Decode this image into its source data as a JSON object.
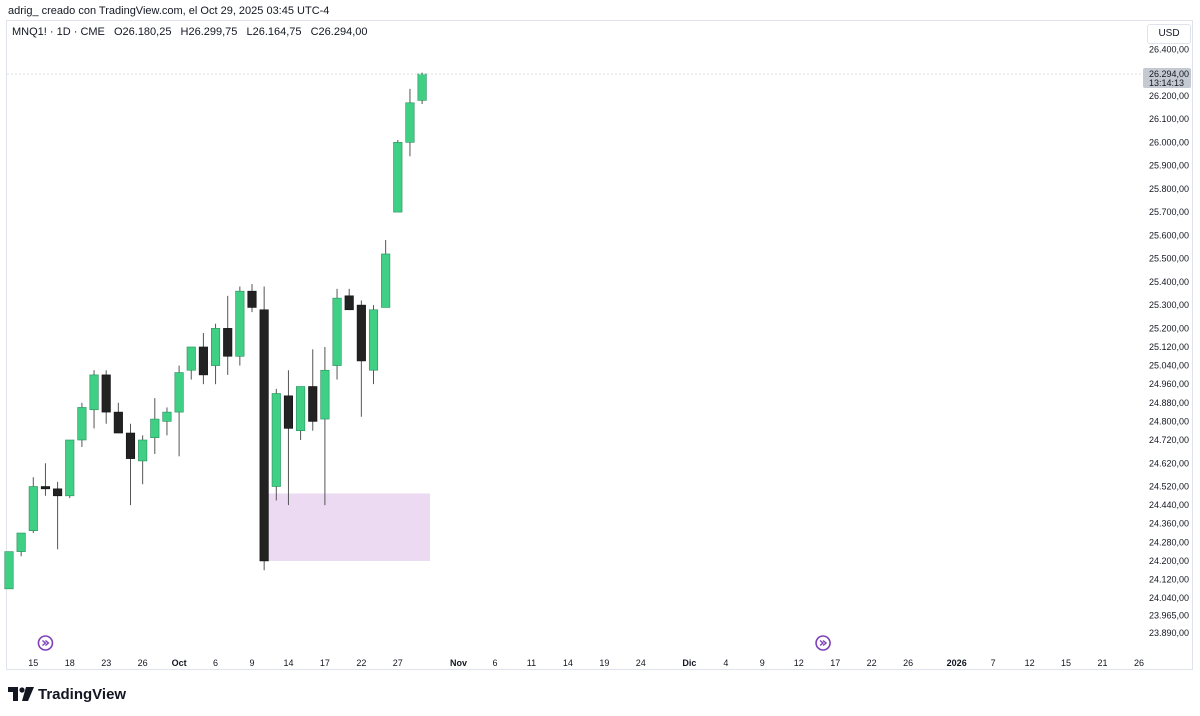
{
  "header": {
    "text": "adrig_ creado con TradingView.com, el Oct 29, 2025 03:45 UTC-4"
  },
  "legend": {
    "symbol": "MNQ1! · 1D · CME",
    "open": "O26.180,25",
    "high": "H26.299,75",
    "low": "L26.164,75",
    "close": "C26.294,00"
  },
  "currency_button": "USD",
  "last_price": {
    "value": "26.294,00",
    "countdown": "13:14:13"
  },
  "brand": "TradingView",
  "colors": {
    "up": "#3fcf85",
    "down": "#222222",
    "zone": "#e8d3ee",
    "event_icon": "#7e3fb9",
    "price_label_bg": "#c5c9d1"
  },
  "chart_data": {
    "type": "candlestick",
    "ylim": [
      23860,
      26440
    ],
    "y_ticks": [
      {
        "label": "26.400,00",
        "value": 26400
      },
      {
        "label": "26.200,00",
        "value": 26200
      },
      {
        "label": "26.100,00",
        "value": 26100
      },
      {
        "label": "26.000,00",
        "value": 26000
      },
      {
        "label": "25.900,00",
        "value": 25900
      },
      {
        "label": "25.800,00",
        "value": 25800
      },
      {
        "label": "25.700,00",
        "value": 25700
      },
      {
        "label": "25.600,00",
        "value": 25600
      },
      {
        "label": "25.500,00",
        "value": 25500
      },
      {
        "label": "25.400,00",
        "value": 25400
      },
      {
        "label": "25.300,00",
        "value": 25300
      },
      {
        "label": "25.200,00",
        "value": 25200
      },
      {
        "label": "25.120,00",
        "value": 25120
      },
      {
        "label": "25.040,00",
        "value": 25040
      },
      {
        "label": "24.960,00",
        "value": 24960
      },
      {
        "label": "24.880,00",
        "value": 24880
      },
      {
        "label": "24.800,00",
        "value": 24800
      },
      {
        "label": "24.720,00",
        "value": 24720
      },
      {
        "label": "24.620,00",
        "value": 24620
      },
      {
        "label": "24.520,00",
        "value": 24520
      },
      {
        "label": "24.440,00",
        "value": 24440
      },
      {
        "label": "24.360,00",
        "value": 24360
      },
      {
        "label": "24.280,00",
        "value": 24280
      },
      {
        "label": "24.200,00",
        "value": 24200
      },
      {
        "label": "24.120,00",
        "value": 24120
      },
      {
        "label": "24.040,00",
        "value": 24040
      },
      {
        "label": "23.965,00",
        "value": 23965
      },
      {
        "label": "23.890,00",
        "value": 23890
      }
    ],
    "x_ticks": [
      {
        "label": "15",
        "i": 2
      },
      {
        "label": "18",
        "i": 5
      },
      {
        "label": "23",
        "i": 8
      },
      {
        "label": "26",
        "i": 11
      },
      {
        "label": "Oct",
        "i": 14,
        "bold": true
      },
      {
        "label": "6",
        "i": 17
      },
      {
        "label": "9",
        "i": 20
      },
      {
        "label": "14",
        "i": 23
      },
      {
        "label": "17",
        "i": 26
      },
      {
        "label": "22",
        "i": 29
      },
      {
        "label": "27",
        "i": 32
      },
      {
        "label": "Nov",
        "i": 37,
        "bold": true
      },
      {
        "label": "6",
        "i": 40
      },
      {
        "label": "11",
        "i": 43
      },
      {
        "label": "14",
        "i": 46
      },
      {
        "label": "19",
        "i": 49
      },
      {
        "label": "24",
        "i": 52
      },
      {
        "label": "Dic",
        "i": 56,
        "bold": true
      },
      {
        "label": "4",
        "i": 59
      },
      {
        "label": "9",
        "i": 62
      },
      {
        "label": "12",
        "i": 65
      },
      {
        "label": "17",
        "i": 68
      },
      {
        "label": "22",
        "i": 71
      },
      {
        "label": "26",
        "i": 74
      },
      {
        "label": "2026",
        "i": 78,
        "bold": true
      },
      {
        "label": "7",
        "i": 81
      },
      {
        "label": "12",
        "i": 84
      },
      {
        "label": "15",
        "i": 87
      },
      {
        "label": "21",
        "i": 90
      },
      {
        "label": "26",
        "i": 93
      }
    ],
    "candles": [
      {
        "o": 24080,
        "h": 24240,
        "l": 24080,
        "c": 24240
      },
      {
        "o": 24240,
        "h": 24310,
        "l": 24220,
        "c": 24320
      },
      {
        "o": 24330,
        "h": 24560,
        "l": 24320,
        "c": 24520
      },
      {
        "o": 24520,
        "h": 24620,
        "l": 24480,
        "c": 24510
      },
      {
        "o": 24510,
        "h": 24540,
        "l": 24250,
        "c": 24480
      },
      {
        "o": 24480,
        "h": 24720,
        "l": 24470,
        "c": 24720
      },
      {
        "o": 24720,
        "h": 24880,
        "l": 24690,
        "c": 24860
      },
      {
        "o": 24850,
        "h": 25020,
        "l": 24770,
        "c": 25000
      },
      {
        "o": 25000,
        "h": 25020,
        "l": 24790,
        "c": 24840
      },
      {
        "o": 24840,
        "h": 24880,
        "l": 24760,
        "c": 24750
      },
      {
        "o": 24750,
        "h": 24790,
        "l": 24440,
        "c": 24640
      },
      {
        "o": 24630,
        "h": 24740,
        "l": 24530,
        "c": 24720
      },
      {
        "o": 24730,
        "h": 24900,
        "l": 24660,
        "c": 24810
      },
      {
        "o": 24800,
        "h": 24860,
        "l": 24740,
        "c": 24840
      },
      {
        "o": 24840,
        "h": 25040,
        "l": 24650,
        "c": 25010
      },
      {
        "o": 25020,
        "h": 25110,
        "l": 24980,
        "c": 25120
      },
      {
        "o": 25120,
        "h": 25180,
        "l": 24960,
        "c": 25000
      },
      {
        "o": 25040,
        "h": 25220,
        "l": 24960,
        "c": 25200
      },
      {
        "o": 25200,
        "h": 25340,
        "l": 25000,
        "c": 25080
      },
      {
        "o": 25080,
        "h": 25380,
        "l": 25040,
        "c": 25360
      },
      {
        "o": 25360,
        "h": 25390,
        "l": 25270,
        "c": 25290
      },
      {
        "o": 25280,
        "h": 25380,
        "l": 24160,
        "c": 24200
      },
      {
        "o": 24520,
        "h": 24940,
        "l": 24460,
        "c": 24920
      },
      {
        "o": 24910,
        "h": 25020,
        "l": 24440,
        "c": 24770
      },
      {
        "o": 24760,
        "h": 24940,
        "l": 24720,
        "c": 24950
      },
      {
        "o": 24950,
        "h": 25110,
        "l": 24760,
        "c": 24800
      },
      {
        "o": 24810,
        "h": 25120,
        "l": 24440,
        "c": 25020
      },
      {
        "o": 25040,
        "h": 25370,
        "l": 24980,
        "c": 25330
      },
      {
        "o": 25340,
        "h": 25370,
        "l": 25290,
        "c": 25280
      },
      {
        "o": 25300,
        "h": 25320,
        "l": 24820,
        "c": 25060
      },
      {
        "o": 25020,
        "h": 25300,
        "l": 24960,
        "c": 25280
      },
      {
        "o": 25290,
        "h": 25580,
        "l": 25290,
        "c": 25520
      },
      {
        "o": 25700,
        "h": 26010,
        "l": 25700,
        "c": 26000
      },
      {
        "o": 26000,
        "h": 26230,
        "l": 25940,
        "c": 26170
      },
      {
        "o": 26180.25,
        "h": 26299.75,
        "l": 26164.75,
        "c": 26294
      }
    ],
    "zone": {
      "from_i": 21,
      "to_i": 35,
      "low": 24200,
      "high": 24490
    },
    "event_markers": [
      {
        "i": 3
      },
      {
        "i": 67
      }
    ]
  }
}
